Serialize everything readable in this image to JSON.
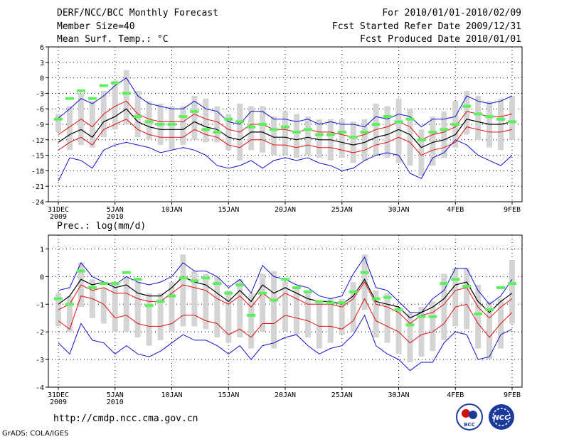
{
  "header": {
    "title": "DERF/NCC/BCC Monthly Forecast",
    "member_size": "Member Size=40",
    "variable": "Mean Surf. Temp.: °C",
    "period": "For 2010/01/01-2010/02/09",
    "started": "Fcst Started Refer Date 2009/12/31",
    "produced": "Fcst Produced Date 2010/01/01"
  },
  "footer": {
    "url": "http://cmdp.ncc.cma.gov.cn",
    "grads": "GrADS: COLA/IGES",
    "logo_bcc_label": "BCC",
    "logo_ncc_label": "NCC"
  },
  "colors": {
    "spread": "#d4d4d4",
    "ensemble_mean": "#000000",
    "quartile": "#e01010",
    "extreme": "#1010d0",
    "observed": "#5cf05c"
  },
  "chart_data": [
    {
      "type": "line",
      "title": "Mean Surf. Temp.: °C",
      "x_tick_labels": [
        "31DEC\n2009",
        "5JAN\n2010",
        "10JAN",
        "15JAN",
        "20JAN",
        "25JAN",
        "30JAN",
        "4FEB",
        "9FEB"
      ],
      "x_tick_days": [
        0,
        5,
        10,
        15,
        20,
        25,
        30,
        35,
        40
      ],
      "ylim": [
        -24,
        6
      ],
      "y_ticks": [
        6,
        3,
        0,
        -3,
        -6,
        -9,
        -12,
        -15,
        -18,
        -21,
        -24
      ],
      "grid": true,
      "series": [
        {
          "name": "max",
          "color": "blue",
          "values": [
            -7.8,
            -6.0,
            -4.0,
            -5.0,
            -3.5,
            -1.5,
            0.0,
            -3.5,
            -5.0,
            -5.5,
            -6.0,
            -6.0,
            -4.5,
            -6.0,
            -6.5,
            -8.5,
            -9.0,
            -6.5,
            -6.5,
            -8.0,
            -8.0,
            -8.5,
            -8.0,
            -9.0,
            -8.5,
            -9.0,
            -9.0,
            -9.5,
            -7.5,
            -8.0,
            -7.0,
            -7.5,
            -9.5,
            -8.0,
            -8.0,
            -7.5,
            -3.5,
            -4.5,
            -5.0,
            -4.5,
            -3.5
          ]
        },
        {
          "name": "upper quartile",
          "color": "red",
          "values": [
            -11.0,
            -9.5,
            -8.0,
            -9.5,
            -7.0,
            -5.5,
            -4.5,
            -7.0,
            -8.0,
            -8.5,
            -8.5,
            -8.5,
            -7.0,
            -8.0,
            -8.5,
            -10.0,
            -10.5,
            -9.0,
            -9.0,
            -10.0,
            -10.0,
            -10.5,
            -10.0,
            -10.5,
            -10.5,
            -11.0,
            -11.5,
            -11.0,
            -10.0,
            -9.5,
            -8.5,
            -9.5,
            -12.0,
            -11.0,
            -10.5,
            -9.5,
            -6.5,
            -7.0,
            -7.5,
            -7.5,
            -7.0
          ]
        },
        {
          "name": "ensemble mean",
          "color": "black",
          "values": [
            -12.5,
            -11.0,
            -10.0,
            -11.5,
            -8.5,
            -7.5,
            -6.0,
            -8.5,
            -9.5,
            -10.0,
            -10.0,
            -10.0,
            -8.5,
            -9.5,
            -10.0,
            -11.5,
            -12.0,
            -10.5,
            -10.5,
            -11.5,
            -11.5,
            -12.0,
            -11.5,
            -12.0,
            -12.0,
            -12.5,
            -13.0,
            -12.5,
            -11.5,
            -11.0,
            -10.0,
            -11.0,
            -13.5,
            -12.5,
            -12.0,
            -11.0,
            -8.0,
            -8.5,
            -9.0,
            -9.0,
            -8.5
          ]
        },
        {
          "name": "lower quartile",
          "color": "red",
          "values": [
            -14.0,
            -12.5,
            -11.5,
            -13.0,
            -10.0,
            -9.0,
            -8.0,
            -10.0,
            -11.0,
            -11.5,
            -11.5,
            -11.5,
            -10.0,
            -11.0,
            -11.5,
            -13.0,
            -13.5,
            -12.0,
            -12.0,
            -13.0,
            -13.0,
            -13.5,
            -13.0,
            -13.5,
            -13.5,
            -14.0,
            -14.5,
            -14.0,
            -13.0,
            -12.5,
            -11.5,
            -12.5,
            -15.0,
            -14.0,
            -13.5,
            -12.5,
            -9.5,
            -10.0,
            -10.5,
            -10.5,
            -10.0
          ]
        },
        {
          "name": "min",
          "color": "blue",
          "values": [
            -20.0,
            -15.5,
            -16.0,
            -17.5,
            -14.0,
            -13.0,
            -12.5,
            -13.0,
            -13.5,
            -14.5,
            -14.0,
            -13.5,
            -14.0,
            -15.0,
            -17.0,
            -17.5,
            -17.0,
            -16.0,
            -17.5,
            -16.0,
            -15.5,
            -16.0,
            -15.5,
            -16.5,
            -17.0,
            -18.0,
            -17.5,
            -16.0,
            -15.0,
            -14.5,
            -15.0,
            -18.5,
            -19.5,
            -15.5,
            -14.5,
            -12.0,
            -13.0,
            -15.0,
            -16.0,
            -17.0,
            -15.0
          ]
        },
        {
          "name": "spread top",
          "color": "grey",
          "values": [
            -7.0,
            -5.5,
            -3.0,
            -4.5,
            -2.5,
            -0.5,
            1.5,
            -2.5,
            -4.5,
            -5.0,
            -5.5,
            -5.5,
            -3.5,
            -4.0,
            -5.5,
            -7.0,
            -5.0,
            -5.5,
            -5.5,
            -7.5,
            -6.5,
            -7.0,
            -7.5,
            -8.0,
            -8.0,
            -8.0,
            -8.5,
            -8.0,
            -5.0,
            -5.5,
            -4.0,
            -6.0,
            -10.0,
            -7.5,
            -6.5,
            -4.5,
            -2.5,
            -3.5,
            -4.5,
            -4.0,
            -3.5
          ]
        },
        {
          "name": "spread bottom",
          "color": "grey",
          "values": [
            -10.5,
            -14.0,
            -13.0,
            -13.5,
            -11.5,
            -10.0,
            -9.0,
            -11.5,
            -12.0,
            -13.0,
            -14.0,
            -13.0,
            -12.0,
            -12.5,
            -12.5,
            -14.0,
            -16.0,
            -14.0,
            -14.5,
            -15.0,
            -15.0,
            -15.5,
            -15.0,
            -15.5,
            -16.0,
            -15.5,
            -16.5,
            -16.0,
            -15.0,
            -15.5,
            -16.5,
            -17.0,
            -19.0,
            -17.0,
            -15.5,
            -13.5,
            -11.0,
            -12.0,
            -13.5,
            -14.0,
            -12.0
          ]
        },
        {
          "name": "observed",
          "color": "green",
          "values": [
            -8.0,
            -4.0,
            -2.5,
            -4.0,
            -1.5,
            -1.0,
            -3.0,
            -7.5,
            -8.5,
            -9.0,
            -9.0,
            -7.5,
            -6.5,
            -10.0,
            -10.5,
            -8.0,
            -8.5,
            -9.5,
            -9.0,
            -10.0,
            -9.5,
            -10.5,
            -10.0,
            -11.0,
            -11.0,
            -10.5,
            -11.5,
            -10.5,
            -9.0,
            -7.5,
            -8.5,
            -8.0,
            -12.0,
            -10.5,
            -10.0,
            -9.0,
            -5.5,
            -7.0,
            -7.5,
            -8.0,
            -8.5
          ]
        }
      ]
    },
    {
      "type": "line",
      "title": "Prec.: log(mm/d)",
      "x_tick_labels": [
        "31DEC\n2009",
        "5JAN\n2010",
        "10JAN",
        "15JAN",
        "20JAN",
        "25JAN",
        "30JAN",
        "4FEB",
        "9FEB"
      ],
      "x_tick_days": [
        0,
        5,
        10,
        15,
        20,
        25,
        30,
        35,
        40
      ],
      "ylim": [
        -4,
        1.5
      ],
      "y_ticks": [
        1,
        0,
        -1,
        -2,
        -3,
        -4
      ],
      "grid": true,
      "series": [
        {
          "name": "max",
          "color": "blue",
          "values": [
            -0.5,
            -0.4,
            0.5,
            0.0,
            -0.2,
            -0.3,
            0.0,
            -0.2,
            -0.3,
            -0.2,
            0.0,
            0.5,
            0.2,
            0.2,
            0.0,
            -0.4,
            -0.1,
            -0.6,
            0.4,
            0.0,
            -0.1,
            -0.3,
            -0.4,
            -0.7,
            -0.8,
            -0.7,
            0.1,
            0.7,
            -0.4,
            -0.5,
            -0.9,
            -1.3,
            -1.3,
            -0.8,
            -0.5,
            0.3,
            0.3,
            -0.5,
            -1.0,
            -0.7,
            -0.1
          ]
        },
        {
          "name": "upper quartile",
          "color": "red",
          "values": [
            -1.2,
            -1.0,
            -0.3,
            -0.5,
            -0.4,
            -0.6,
            -0.6,
            -0.8,
            -0.9,
            -0.9,
            -0.6,
            -0.3,
            -0.4,
            -0.5,
            -0.8,
            -1.0,
            -0.7,
            -1.1,
            -0.6,
            -0.9,
            -0.6,
            -0.8,
            -1.0,
            -1.0,
            -1.0,
            -1.1,
            -0.8,
            -0.2,
            -1.0,
            -1.1,
            -1.3,
            -1.7,
            -1.4,
            -1.3,
            -1.0,
            -0.5,
            -0.4,
            -1.1,
            -1.5,
            -1.1,
            -0.8
          ]
        },
        {
          "name": "ensemble mean",
          "color": "black",
          "values": [
            -1.0,
            -0.7,
            -0.1,
            -0.3,
            -0.2,
            -0.4,
            -0.3,
            -0.6,
            -0.7,
            -0.7,
            -0.4,
            0.0,
            -0.2,
            -0.3,
            -0.6,
            -0.9,
            -0.5,
            -0.9,
            -0.3,
            -0.6,
            -0.4,
            -0.6,
            -0.8,
            -0.9,
            -0.9,
            -1.0,
            -0.7,
            -0.1,
            -0.9,
            -1.0,
            -1.1,
            -1.5,
            -1.3,
            -1.1,
            -0.8,
            -0.3,
            -0.2,
            -0.9,
            -1.3,
            -0.9,
            -0.6
          ]
        },
        {
          "name": "lower quartile",
          "color": "red",
          "values": [
            -1.6,
            -1.9,
            -0.7,
            -0.8,
            -1.0,
            -1.5,
            -1.4,
            -1.7,
            -1.8,
            -1.8,
            -1.7,
            -1.4,
            -1.4,
            -1.6,
            -1.7,
            -2.1,
            -1.9,
            -2.2,
            -1.7,
            -1.7,
            -1.4,
            -1.5,
            -1.6,
            -1.8,
            -1.8,
            -1.9,
            -1.6,
            -0.8,
            -1.6,
            -1.8,
            -2.0,
            -2.4,
            -2.1,
            -2.0,
            -1.7,
            -1.1,
            -1.0,
            -1.7,
            -2.2,
            -1.7,
            -1.3
          ]
        },
        {
          "name": "min",
          "color": "blue",
          "values": [
            -2.4,
            -2.8,
            -1.7,
            -2.3,
            -2.4,
            -2.8,
            -2.5,
            -2.8,
            -2.9,
            -2.7,
            -2.4,
            -2.1,
            -2.3,
            -2.3,
            -2.5,
            -2.8,
            -2.5,
            -3.0,
            -2.5,
            -2.4,
            -2.2,
            -2.1,
            -2.5,
            -2.8,
            -2.6,
            -2.5,
            -2.1,
            -1.4,
            -2.5,
            -2.8,
            -3.0,
            -3.4,
            -3.1,
            -3.1,
            -2.4,
            -2.0,
            -2.1,
            -3.0,
            -2.9,
            -2.1,
            -1.9
          ]
        },
        {
          "name": "spread top",
          "color": "grey",
          "values": [
            -0.6,
            -0.7,
            0.5,
            -0.1,
            -0.4,
            -0.3,
            0.0,
            -0.2,
            -0.6,
            -0.6,
            -0.2,
            0.8,
            0.2,
            0.1,
            0.0,
            -0.5,
            -0.1,
            -0.6,
            0.1,
            0.2,
            -0.2,
            -0.4,
            -0.6,
            -0.9,
            -0.8,
            -0.8,
            -0.2,
            0.8,
            -0.5,
            -0.6,
            -1.1,
            -1.3,
            -1.1,
            -0.9,
            0.1,
            0.3,
            0.3,
            -0.3,
            -0.9,
            -0.8,
            0.6
          ]
        },
        {
          "name": "spread bottom",
          "color": "grey",
          "values": [
            -1.8,
            -2.0,
            -1.1,
            -1.5,
            -1.7,
            -2.0,
            -2.0,
            -2.2,
            -2.5,
            -2.3,
            -2.0,
            -1.8,
            -1.8,
            -1.9,
            -2.2,
            -2.4,
            -2.2,
            -2.6,
            -2.0,
            -2.6,
            -2.0,
            -2.1,
            -2.2,
            -2.6,
            -2.4,
            -2.1,
            -2.0,
            -1.2,
            -2.2,
            -2.4,
            -2.8,
            -3.1,
            -2.9,
            -2.7,
            -2.3,
            -1.8,
            -1.9,
            -2.6,
            -3.0,
            -2.6,
            -1.7
          ]
        },
        {
          "name": "observed",
          "color": "green",
          "values": [
            -0.8,
            -1.0,
            0.2,
            -0.4,
            -0.25,
            -0.25,
            0.15,
            -0.1,
            -1.05,
            -0.9,
            -0.7,
            -0.05,
            -0.15,
            -0.05,
            -0.25,
            -0.6,
            -0.3,
            -1.4,
            -0.6,
            -0.85,
            -0.1,
            -0.4,
            -0.55,
            -0.9,
            -0.95,
            -0.95,
            -0.55,
            0.15,
            -0.8,
            -0.75,
            -1.2,
            -1.75,
            -1.45,
            -1.45,
            -0.25,
            -0.1,
            -0.35,
            -1.35,
            -1.2,
            -0.4,
            -0.25
          ]
        }
      ]
    }
  ]
}
